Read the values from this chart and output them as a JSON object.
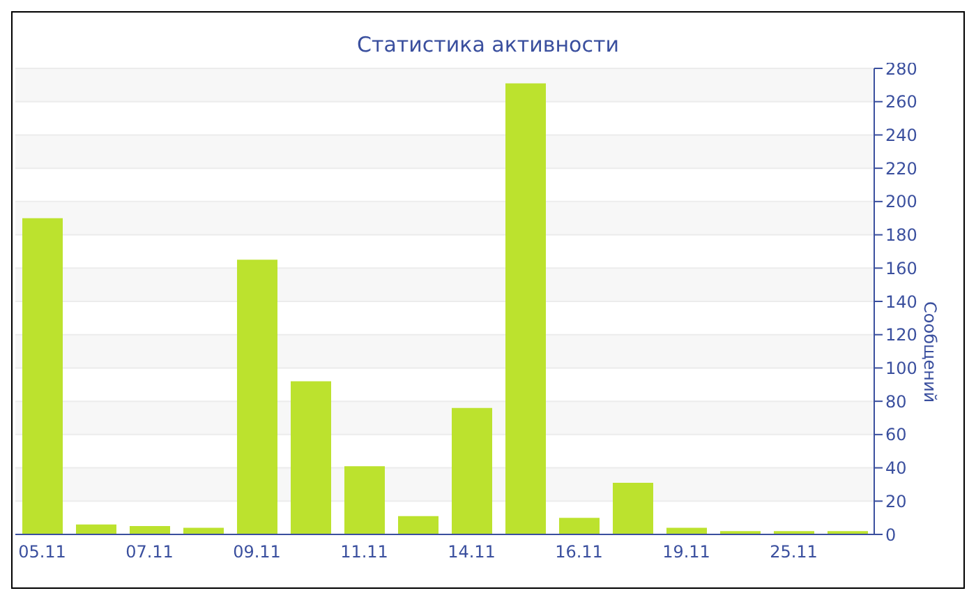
{
  "chart_data": {
    "type": "bar",
    "title": "Статистика активности",
    "ylabel": "Сообщений",
    "categories": [
      "05.11",
      null,
      "07.11",
      null,
      "09.11",
      null,
      "11.11",
      null,
      "14.11",
      null,
      "16.11",
      null,
      "19.11",
      null,
      "25.11",
      null
    ],
    "values": [
      190,
      6,
      5,
      4,
      165,
      92,
      41,
      11,
      76,
      271,
      10,
      31,
      4,
      2,
      2,
      2
    ],
    "color": "#bce22e",
    "ylim": [
      0,
      280
    ],
    "yticks": [
      0,
      20,
      40,
      60,
      80,
      100,
      120,
      140,
      160,
      180,
      200,
      220,
      240,
      260,
      280
    ],
    "grid": "y"
  }
}
